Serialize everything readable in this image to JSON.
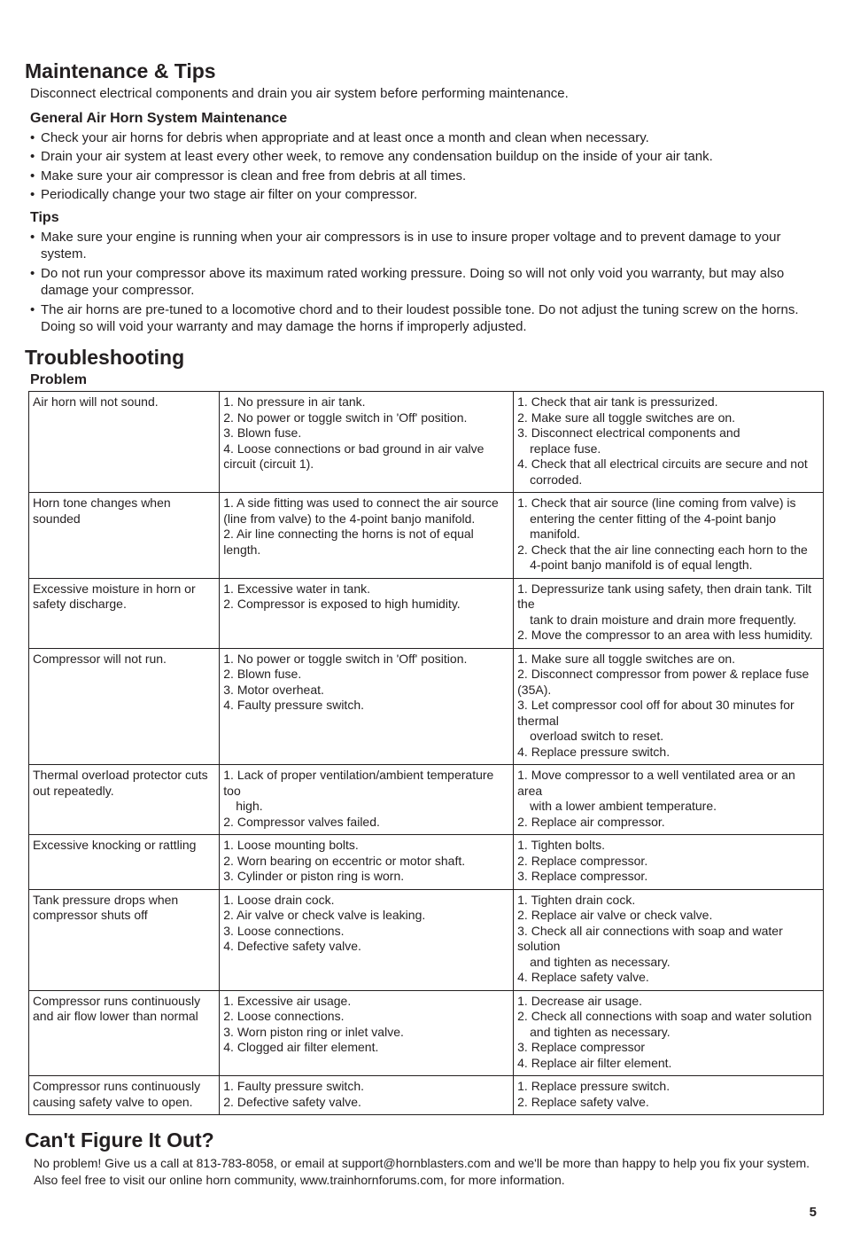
{
  "maintenance": {
    "title": "Maintenance & Tips",
    "intro": "Disconnect electrical components and drain you air system before performing maintenance.",
    "general_title": "General Air Horn System Maintenance",
    "general_items": [
      "Check your air horns for debris when appropriate and at least once a month and clean when necessary.",
      "Drain your air system at least every other week, to remove any condensation buildup on the inside of your air tank.",
      "Make sure your air compressor is clean and free from debris at all times.",
      "Periodically change your two stage air filter on your compressor."
    ],
    "tips_title": "Tips",
    "tips_items": [
      "Make sure your engine is running when your air compressors is in use to insure proper voltage and to prevent damage to your system.",
      "Do not run your compressor above its maximum rated working pressure. Doing so will not only void you warranty, but may also damage your compressor.",
      "The air horns are pre-tuned to a locomotive chord and to their loudest possible tone. Do not adjust the tuning screw on the horns. Doing so will void your warranty and may damage the horns if improperly adjusted."
    ]
  },
  "troubleshooting": {
    "title": "Troubleshooting",
    "problem_label": "Problem",
    "rows": [
      {
        "problem": [
          "Air horn will not sound."
        ],
        "cause": [
          "1. No pressure in air tank.",
          "2. No power or toggle switch in 'Off' position.",
          "3. Blown fuse.",
          "4. Loose connections or bad ground in air valve circuit (circuit 1)."
        ],
        "solution": [
          "1. Check that air tank is pressurized.",
          "2. Make sure all toggle switches are on.",
          "3. Disconnect electrical components and",
          {
            "indent": "replace fuse."
          },
          "4. Check that all electrical circuits are secure and not",
          {
            "indent": "corroded."
          }
        ]
      },
      {
        "problem": [
          "Horn tone changes when sounded"
        ],
        "cause": [
          "1. A side fitting was used to connect the air source (line from valve) to the 4-point banjo manifold.",
          "2. Air line connecting the horns is not of equal length."
        ],
        "solution": [
          "1. Check that air source (line coming from valve) is",
          {
            "indent": "entering the center fitting of the 4-point banjo manifold."
          },
          "2. Check that the air line connecting each horn to the",
          {
            "indent": "4-point banjo manifold is of equal length."
          }
        ]
      },
      {
        "problem": [
          "Excessive moisture in horn or safety discharge."
        ],
        "cause": [
          "1. Excessive water in tank.",
          "2. Compressor is exposed to high humidity."
        ],
        "solution": [
          "1. Depressurize tank using safety, then drain tank. Tilt the",
          {
            "indent": "tank to drain moisture and drain more frequently."
          },
          "2. Move the compressor to an area with less humidity."
        ]
      },
      {
        "problem": [
          "Compressor will not run."
        ],
        "cause": [
          "1. No power or toggle switch in 'Off' position.",
          "2. Blown fuse.",
          "3. Motor overheat.",
          "4. Faulty pressure switch."
        ],
        "solution": [
          "1. Make sure all toggle switches are on.",
          "2. Disconnect compressor from power & replace fuse (35A).",
          "3. Let compressor cool off for about 30 minutes for thermal",
          {
            "indent": "overload switch to reset."
          },
          "4. Replace pressure switch."
        ]
      },
      {
        "problem": [
          "Thermal overload protector cuts out repeatedly."
        ],
        "cause": [
          "1. Lack of proper ventilation/ambient temperature too",
          {
            "indent": "high."
          },
          "2. Compressor valves failed."
        ],
        "solution": [
          "1. Move compressor to a well ventilated area or an area",
          {
            "indent": "with a lower ambient temperature."
          },
          "2. Replace air compressor."
        ]
      },
      {
        "problem": [
          "Excessive knocking or rattling"
        ],
        "cause": [
          "1. Loose mounting bolts.",
          "2. Worn bearing on eccentric or motor shaft.",
          "3. Cylinder or piston ring is worn."
        ],
        "solution": [
          "1. Tighten bolts.",
          "2. Replace compressor.",
          "3. Replace compressor."
        ]
      },
      {
        "problem": [
          "Tank pressure drops when compressor shuts off"
        ],
        "cause": [
          "1. Loose drain cock.",
          "2. Air valve or check valve is leaking.",
          "3. Loose connections.",
          "4. Defective safety valve."
        ],
        "solution": [
          "1. Tighten drain cock.",
          "2. Replace air valve or check valve.",
          "3. Check all air connections with soap and water solution",
          {
            "indent": "and tighten as necessary."
          },
          "4. Replace safety valve."
        ]
      },
      {
        "problem": [
          "Compressor runs continuously and air flow lower than normal"
        ],
        "cause": [
          "1. Excessive air usage.",
          "2. Loose connections.",
          "3. Worn piston ring or inlet valve.",
          "4. Clogged air filter element."
        ],
        "solution": [
          "1. Decrease air usage.",
          "2. Check all connections with soap and water solution",
          {
            "indent": "and tighten as necessary."
          },
          "3. Replace compressor",
          "4. Replace air filter element."
        ]
      },
      {
        "problem": [
          "Compressor runs continuously causing safety valve to open."
        ],
        "cause": [
          "1. Faulty pressure switch.",
          "2. Defective safety valve."
        ],
        "solution": [
          "1. Replace pressure switch.",
          "2. Replace safety valve."
        ]
      }
    ]
  },
  "footer": {
    "title": "Can't Figure It Out?",
    "text": "No problem! Give us a call at 813-783-8058, or email at support@hornblasters.com and we'll be more than happy to help you fix your system. Also feel free to visit our online horn community, www.trainhornforums.com, for more information."
  },
  "page_number": "5"
}
